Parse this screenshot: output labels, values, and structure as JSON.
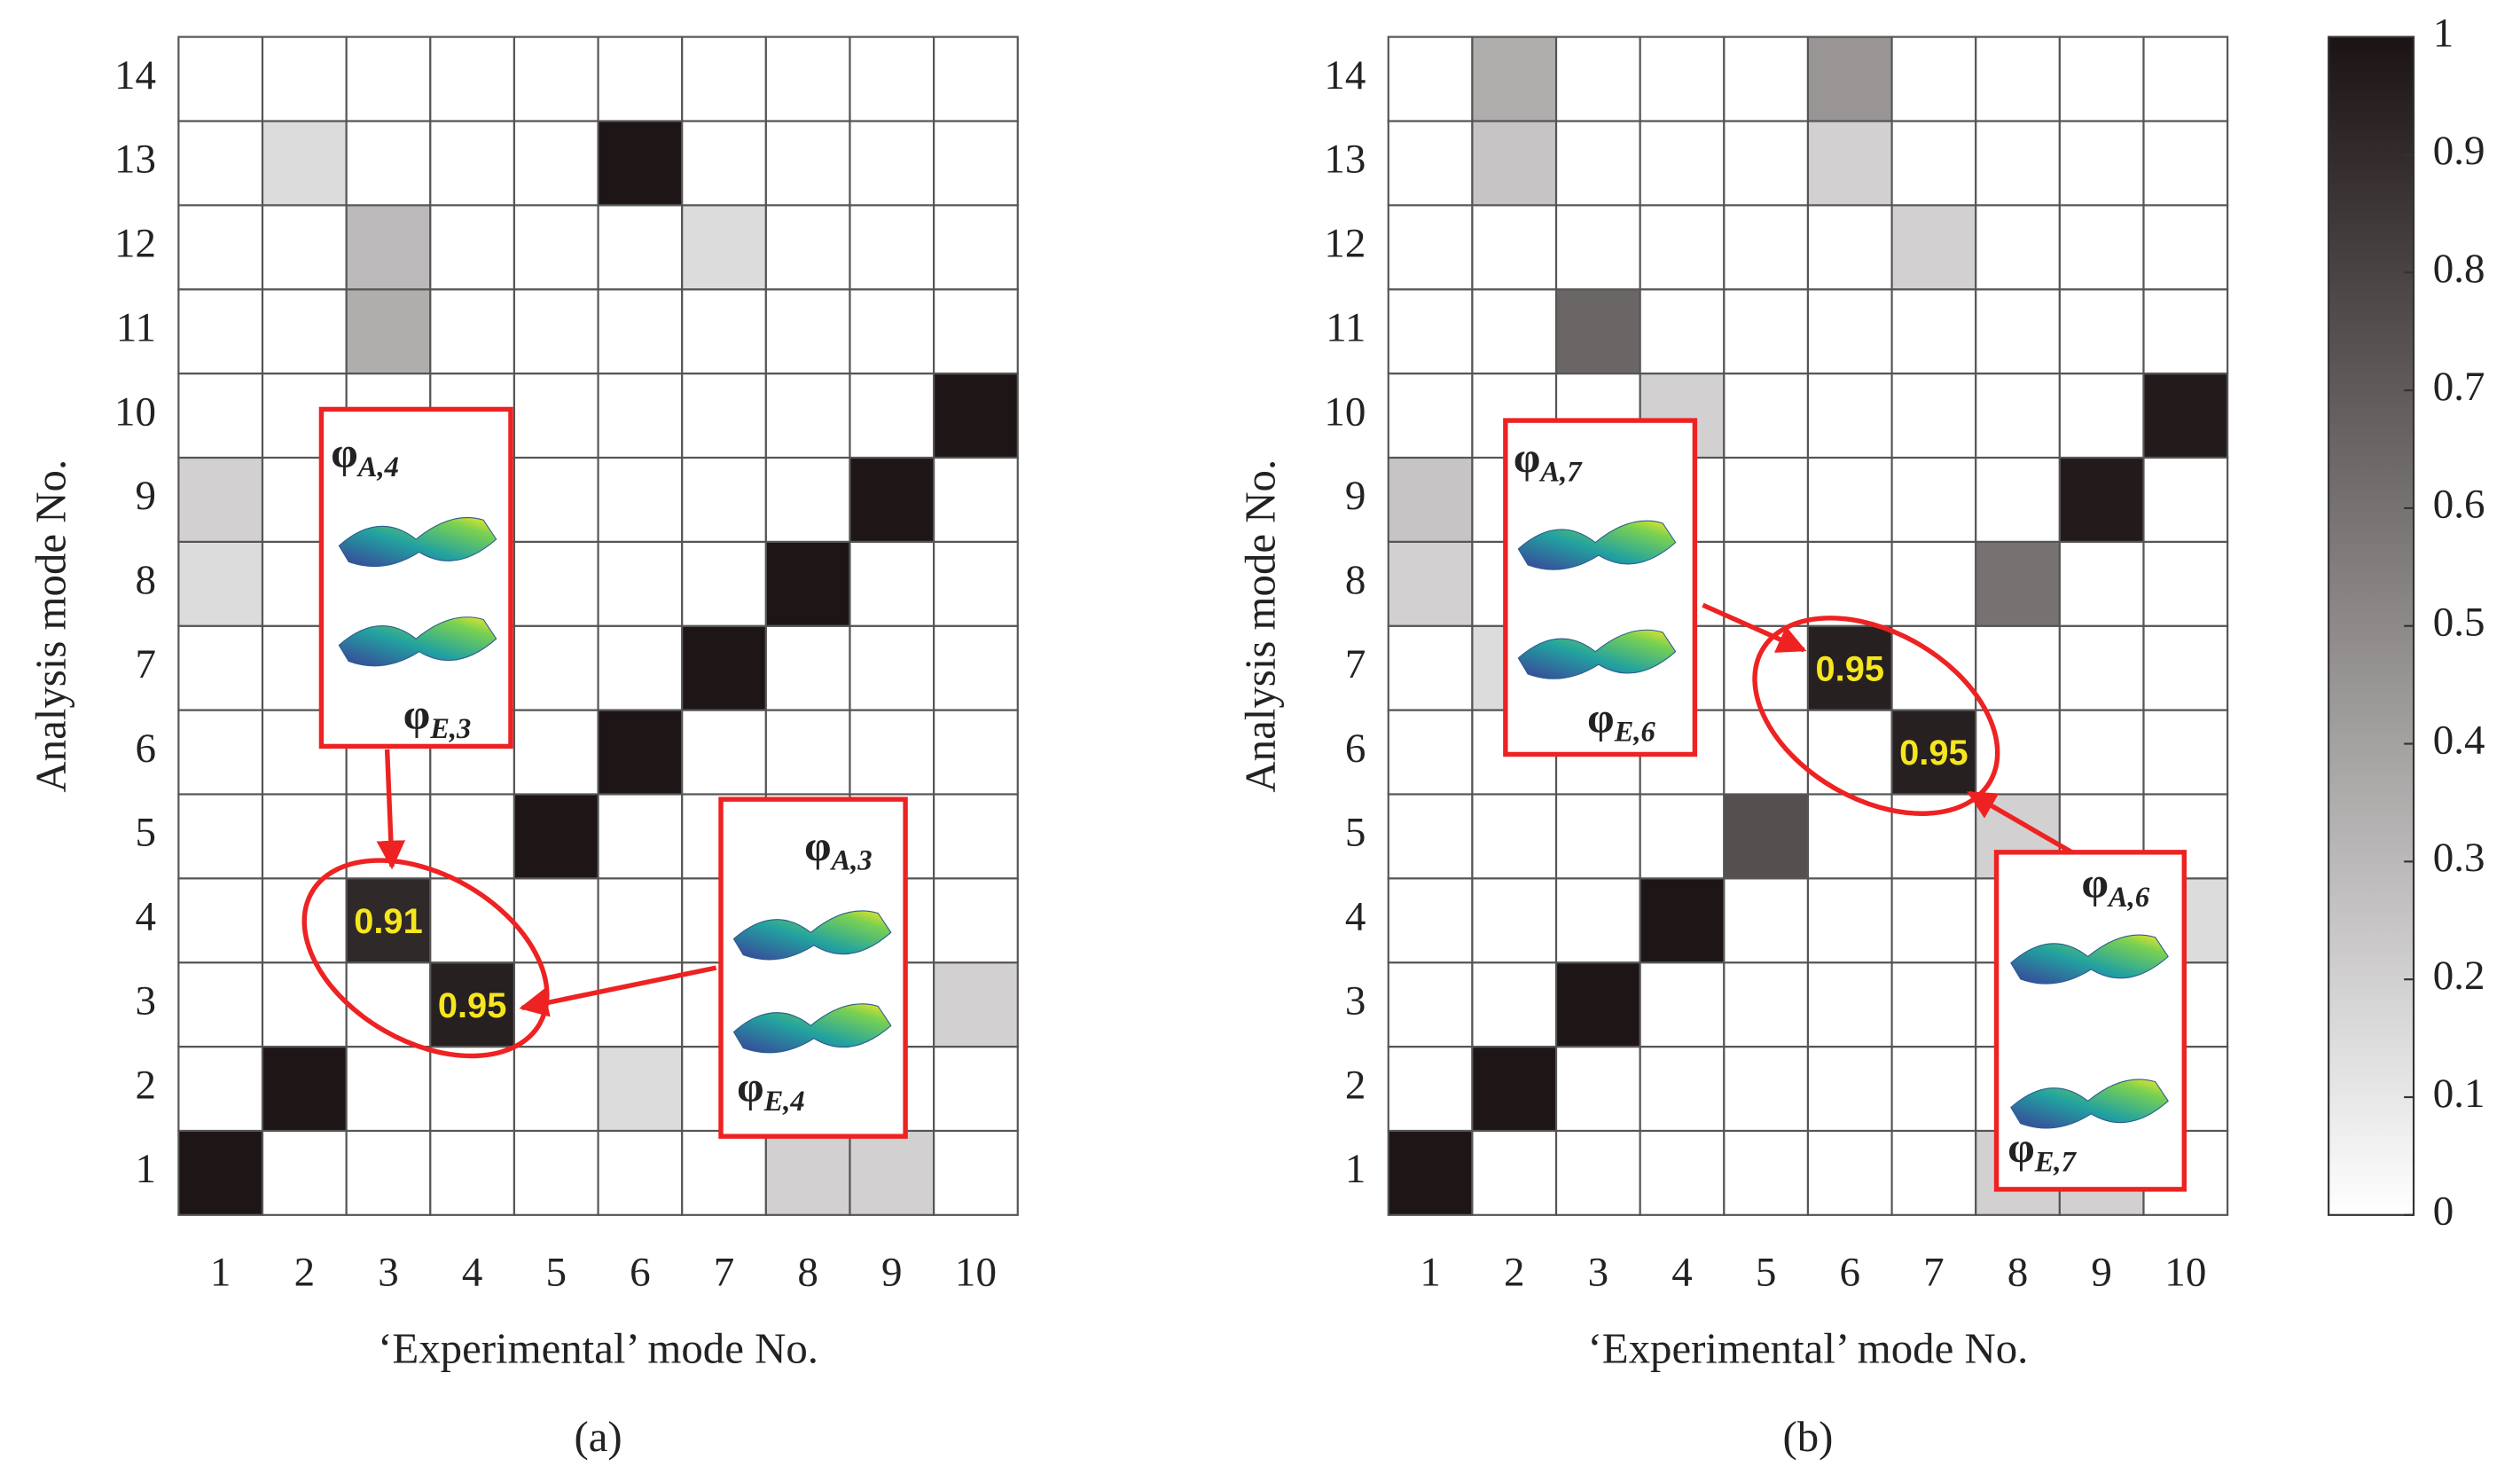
{
  "chart_data": [
    {
      "type": "heatmap",
      "panel_label": "(a)",
      "xlabel": "‘Experimental’ mode No.",
      "ylabel": "Analysis mode No.",
      "x": [
        1,
        2,
        3,
        4,
        5,
        6,
        7,
        8,
        9,
        10
      ],
      "y": [
        1,
        2,
        3,
        4,
        5,
        6,
        7,
        8,
        9,
        10,
        11,
        12,
        13,
        14
      ],
      "values": [
        [
          0.99,
          0,
          0,
          0,
          0,
          0,
          0,
          0.2,
          0.2,
          0
        ],
        [
          0,
          0.99,
          0,
          0,
          0,
          0.15,
          0,
          0,
          0,
          0
        ],
        [
          0,
          0,
          0,
          0.95,
          0,
          0,
          0,
          0,
          0,
          0.2
        ],
        [
          0,
          0,
          0.91,
          0,
          0,
          0,
          0,
          0,
          0,
          0
        ],
        [
          0,
          0,
          0,
          0,
          0.99,
          0,
          0,
          0,
          0,
          0
        ],
        [
          0,
          0,
          0,
          0,
          0,
          0.99,
          0,
          0,
          0,
          0
        ],
        [
          0,
          0,
          0,
          0,
          0,
          0,
          0.99,
          0,
          0,
          0
        ],
        [
          0.15,
          0,
          0,
          0,
          0,
          0,
          0,
          0.99,
          0,
          0
        ],
        [
          0.2,
          0,
          0,
          0,
          0,
          0,
          0,
          0,
          0.99,
          0
        ],
        [
          0,
          0,
          0,
          0,
          0,
          0,
          0,
          0,
          0,
          0.99
        ],
        [
          0,
          0,
          0.35,
          0,
          0,
          0,
          0,
          0,
          0,
          0
        ],
        [
          0,
          0,
          0.3,
          0,
          0,
          0,
          0.15,
          0,
          0,
          0
        ],
        [
          0,
          0.15,
          0,
          0,
          0,
          0.99,
          0,
          0,
          0,
          0
        ],
        [
          0,
          0,
          0,
          0,
          0,
          0,
          0,
          0,
          0,
          0
        ]
      ],
      "labeled_cells": [
        {
          "x": 3,
          "y": 4
        },
        {
          "x": 4,
          "y": 3
        }
      ],
      "annotations": [
        [
          {
            "main": "φ",
            "sub": "A,4"
          },
          {
            "main": "φ",
            "sub": "E,3"
          }
        ],
        [
          {
            "main": "φ",
            "sub": "A,3"
          },
          {
            "main": "φ",
            "sub": "E,4"
          }
        ]
      ]
    },
    {
      "type": "heatmap",
      "panel_label": "(b)",
      "xlabel": "‘Experimental’ mode No.",
      "ylabel": "Analysis mode No.",
      "x": [
        1,
        2,
        3,
        4,
        5,
        6,
        7,
        8,
        9,
        10
      ],
      "y": [
        1,
        2,
        3,
        4,
        5,
        6,
        7,
        8,
        9,
        10,
        11,
        12,
        13,
        14
      ],
      "values": [
        [
          0.99,
          0,
          0,
          0,
          0,
          0,
          0,
          0.2,
          0.2,
          0
        ],
        [
          0,
          0.99,
          0,
          0,
          0,
          0,
          0,
          0,
          0,
          0
        ],
        [
          0,
          0,
          0.99,
          0,
          0,
          0,
          0,
          0,
          0,
          0
        ],
        [
          0,
          0,
          0,
          0.99,
          0,
          0,
          0,
          0,
          0,
          0.15
        ],
        [
          0,
          0,
          0,
          0,
          0.75,
          0,
          0,
          0.2,
          0,
          0
        ],
        [
          0,
          0,
          0,
          0,
          0,
          0,
          0.95,
          0,
          0,
          0
        ],
        [
          0,
          0.15,
          0,
          0,
          0,
          0.95,
          0,
          0,
          0,
          0
        ],
        [
          0.2,
          0,
          0,
          0,
          0,
          0,
          0,
          0.6,
          0,
          0
        ],
        [
          0.25,
          0,
          0,
          0,
          0,
          0,
          0,
          0,
          0.97,
          0
        ],
        [
          0,
          0,
          0,
          0.2,
          0,
          0,
          0,
          0,
          0,
          0.97
        ],
        [
          0,
          0,
          0.65,
          0,
          0,
          0,
          0,
          0,
          0,
          0
        ],
        [
          0,
          0,
          0,
          0,
          0,
          0,
          0.2,
          0,
          0,
          0
        ],
        [
          0,
          0.25,
          0,
          0,
          0,
          0.2,
          0,
          0,
          0,
          0
        ],
        [
          0,
          0.35,
          0,
          0,
          0,
          0.45,
          0,
          0,
          0,
          0
        ]
      ],
      "labeled_cells": [
        {
          "x": 6,
          "y": 7
        },
        {
          "x": 7,
          "y": 6
        }
      ],
      "annotations": [
        [
          {
            "main": "φ",
            "sub": "A,7"
          },
          {
            "main": "φ",
            "sub": "E,6"
          }
        ],
        [
          {
            "main": "φ",
            "sub": "A,6"
          },
          {
            "main": "φ",
            "sub": "E,7"
          }
        ]
      ]
    }
  ],
  "colorbar": {
    "clim": [
      0,
      1
    ],
    "ticks": [
      0,
      0.1,
      0.2,
      0.3,
      0.4,
      0.5,
      0.6,
      0.7,
      0.8,
      0.9,
      1
    ],
    "colors": [
      "#ffffff",
      "#1c1414"
    ]
  }
}
